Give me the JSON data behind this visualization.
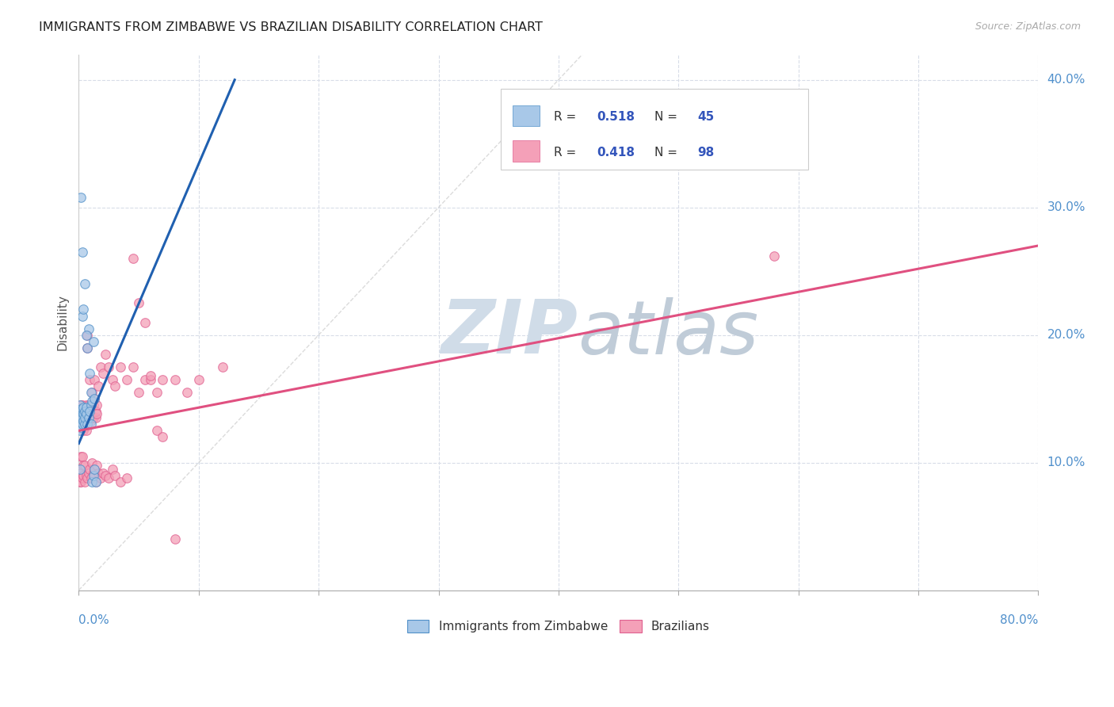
{
  "title": "IMMIGRANTS FROM ZIMBABWE VS BRAZILIAN DISABILITY CORRELATION CHART",
  "source": "Source: ZipAtlas.com",
  "ylabel": "Disability",
  "right_yticks": [
    0.1,
    0.2,
    0.3,
    0.4
  ],
  "right_ytick_labels": [
    "10.0%",
    "20.0%",
    "30.0%",
    "40.0%"
  ],
  "xlim": [
    0.0,
    0.8
  ],
  "ylim": [
    0.0,
    0.42
  ],
  "blue_color": "#a8c8e8",
  "pink_color": "#f4a0b8",
  "blue_edge_color": "#5090c8",
  "pink_edge_color": "#e06090",
  "blue_trend_color": "#2060b0",
  "pink_trend_color": "#e05080",
  "watermark_color": "#d0dce8",
  "grid_color": "#d8dde8",
  "background": "#ffffff",
  "title_color": "#222222",
  "source_color": "#aaaaaa",
  "axis_color": "#5090cc",
  "ylabel_color": "#555555",
  "legend_text_color": "#333333",
  "legend_value_color": "#3355bb",
  "blue_r": "0.518",
  "blue_n": "45",
  "pink_r": "0.418",
  "pink_n": "98",
  "blue_trend_x": [
    0.0,
    0.13
  ],
  "blue_trend_y": [
    0.115,
    0.4
  ],
  "pink_trend_x": [
    0.0,
    0.8
  ],
  "pink_trend_y": [
    0.125,
    0.27
  ],
  "ref_line_x": [
    0.0,
    0.42
  ],
  "ref_line_y": [
    0.0,
    0.42
  ],
  "blue_x": [
    0.001,
    0.001,
    0.001,
    0.001,
    0.001,
    0.002,
    0.002,
    0.002,
    0.002,
    0.002,
    0.003,
    0.003,
    0.003,
    0.003,
    0.004,
    0.004,
    0.004,
    0.005,
    0.005,
    0.005,
    0.006,
    0.006,
    0.007,
    0.008,
    0.009,
    0.01,
    0.01,
    0.011,
    0.012,
    0.013,
    0.002,
    0.003,
    0.003,
    0.004,
    0.005,
    0.006,
    0.007,
    0.008,
    0.009,
    0.01,
    0.011,
    0.012,
    0.013,
    0.014,
    0.001
  ],
  "blue_y": [
    0.135,
    0.13,
    0.14,
    0.125,
    0.145,
    0.128,
    0.138,
    0.132,
    0.142,
    0.136,
    0.13,
    0.14,
    0.135,
    0.142,
    0.133,
    0.138,
    0.143,
    0.13,
    0.135,
    0.14,
    0.138,
    0.143,
    0.19,
    0.205,
    0.17,
    0.145,
    0.155,
    0.148,
    0.195,
    0.15,
    0.308,
    0.265,
    0.215,
    0.22,
    0.24,
    0.2,
    0.13,
    0.135,
    0.14,
    0.13,
    0.085,
    0.09,
    0.095,
    0.085,
    0.095
  ],
  "pink_x": [
    0.001,
    0.001,
    0.001,
    0.001,
    0.002,
    0.002,
    0.002,
    0.002,
    0.003,
    0.003,
    0.003,
    0.003,
    0.004,
    0.004,
    0.004,
    0.004,
    0.005,
    0.005,
    0.005,
    0.005,
    0.006,
    0.006,
    0.006,
    0.007,
    0.007,
    0.008,
    0.008,
    0.009,
    0.009,
    0.01,
    0.01,
    0.011,
    0.011,
    0.012,
    0.012,
    0.013,
    0.013,
    0.014,
    0.014,
    0.015,
    0.015,
    0.016,
    0.018,
    0.02,
    0.022,
    0.025,
    0.028,
    0.03,
    0.035,
    0.04,
    0.045,
    0.05,
    0.055,
    0.06,
    0.065,
    0.07,
    0.08,
    0.09,
    0.1,
    0.12,
    0.001,
    0.001,
    0.002,
    0.002,
    0.002,
    0.003,
    0.003,
    0.004,
    0.004,
    0.005,
    0.005,
    0.006,
    0.007,
    0.008,
    0.009,
    0.01,
    0.011,
    0.012,
    0.013,
    0.014,
    0.015,
    0.016,
    0.018,
    0.02,
    0.022,
    0.025,
    0.028,
    0.03,
    0.035,
    0.04,
    0.045,
    0.05,
    0.055,
    0.06,
    0.065,
    0.07,
    0.08,
    0.58
  ],
  "pink_y": [
    0.135,
    0.128,
    0.142,
    0.138,
    0.13,
    0.14,
    0.133,
    0.145,
    0.128,
    0.138,
    0.132,
    0.145,
    0.13,
    0.14,
    0.135,
    0.125,
    0.132,
    0.138,
    0.143,
    0.128,
    0.135,
    0.145,
    0.125,
    0.19,
    0.2,
    0.135,
    0.145,
    0.138,
    0.165,
    0.133,
    0.145,
    0.135,
    0.155,
    0.145,
    0.135,
    0.165,
    0.15,
    0.135,
    0.14,
    0.145,
    0.138,
    0.16,
    0.175,
    0.17,
    0.185,
    0.175,
    0.165,
    0.16,
    0.175,
    0.165,
    0.175,
    0.155,
    0.165,
    0.165,
    0.155,
    0.165,
    0.165,
    0.155,
    0.165,
    0.175,
    0.085,
    0.095,
    0.085,
    0.092,
    0.105,
    0.088,
    0.105,
    0.09,
    0.098,
    0.085,
    0.098,
    0.09,
    0.088,
    0.092,
    0.095,
    0.088,
    0.1,
    0.092,
    0.095,
    0.085,
    0.098,
    0.092,
    0.088,
    0.092,
    0.09,
    0.088,
    0.095,
    0.09,
    0.085,
    0.088,
    0.26,
    0.225,
    0.21,
    0.168,
    0.125,
    0.12,
    0.04,
    0.262
  ]
}
